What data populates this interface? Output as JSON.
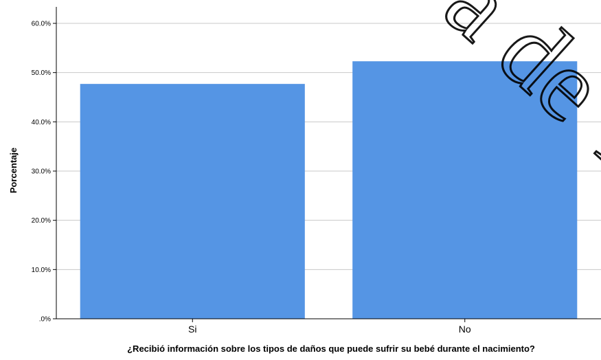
{
  "chart_data": {
    "type": "bar",
    "categories": [
      "Si",
      "No"
    ],
    "values": [
      47.7,
      52.3
    ],
    "xlabel": "¿Recibió información sobre los tipos de daños que puede sufrir su bebé durante el nacimiento?",
    "ylabel": "Porcentaje",
    "ylim": [
      0,
      60
    ],
    "yticks": [
      ".0%",
      "10.0%",
      "20.0%",
      "30.0%",
      "40.0%",
      "50.0%",
      "60.0%"
    ],
    "grid": true,
    "colors": {
      "bar": "#5595e4",
      "grid": "#c8c8c8",
      "axis": "#000000"
    }
  },
  "watermark": {
    "text": "a de Ta"
  }
}
